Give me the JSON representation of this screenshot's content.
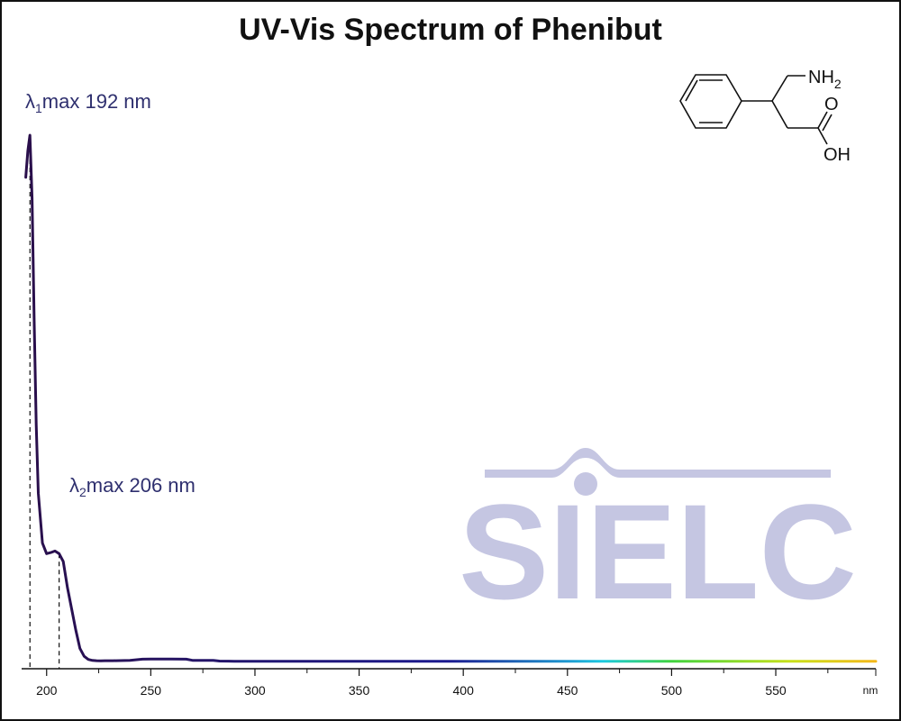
{
  "chart_data": {
    "type": "line",
    "title": "UV-Vis Spectrum of Phenibut",
    "xlabel": "nm",
    "ylabel": "",
    "xlim": [
      188,
      598
    ],
    "ylim": [
      0,
      1.0
    ],
    "x_ticks": [
      200,
      250,
      300,
      350,
      400,
      450,
      500,
      550
    ],
    "x_tick_labels": [
      "200",
      "250",
      "300",
      "350",
      "400",
      "450",
      "500",
      "550"
    ],
    "y_ticks_shown": false,
    "grid": false,
    "colors": {
      "curve": "#2a0f4a",
      "spectrum_gradient": [
        "#2a0f4a",
        "#1b1a8f",
        "#1f9ad1",
        "#1cc9e0",
        "#3fd23f",
        "#c8e01a",
        "#f4b81a"
      ],
      "annotation_text": "#2e2f6e",
      "watermark": "#c5c6e2"
    },
    "series": [
      {
        "x": [
          190,
          191,
          192,
          193,
          194,
          195,
          196,
          198,
          200,
          202,
          204,
          206,
          208,
          210,
          212,
          214,
          216,
          218,
          220,
          222,
          224,
          226,
          228,
          232,
          240,
          246,
          250,
          255,
          260,
          267,
          270,
          280,
          283,
          290,
          300,
          350,
          400,
          450,
          500,
          550,
          598
        ],
        "y": [
          0.92,
          0.97,
          1.0,
          0.88,
          0.65,
          0.45,
          0.32,
          0.225,
          0.205,
          0.207,
          0.21,
          0.205,
          0.19,
          0.14,
          0.1,
          0.06,
          0.025,
          0.01,
          0.004,
          0.002,
          0.0015,
          0.0014,
          0.0015,
          0.0016,
          0.0022,
          0.0045,
          0.0048,
          0.0048,
          0.0047,
          0.0045,
          0.0022,
          0.002,
          0.0008,
          0.0005,
          0.0005,
          0.0005,
          0.0005,
          0.0005,
          0.0005,
          0.0005,
          0.0005
        ]
      }
    ],
    "annotations": [
      {
        "label_symbol": "λ",
        "label_sub": "1",
        "label_rest": "max  192 nm",
        "x": 192
      },
      {
        "label_symbol": "λ",
        "label_sub": "2",
        "label_rest": "max  206 nm",
        "x": 206
      }
    ],
    "watermark": "SIELC",
    "structure_labels": {
      "amine": "NH",
      "amine_sub": "2",
      "carbonyl": "O",
      "hydroxyl": "OH"
    }
  }
}
